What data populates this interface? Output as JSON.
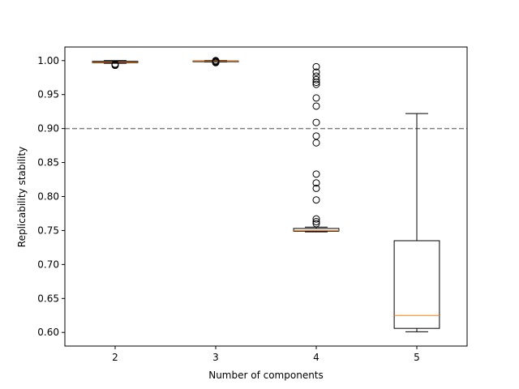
{
  "chart_data": {
    "type": "box",
    "title": "",
    "xlabel": "Number of components",
    "ylabel": "Replicability stability",
    "categories": [
      "2",
      "3",
      "4",
      "5"
    ],
    "ylim": [
      0.58,
      1.02
    ],
    "yticks": [
      0.6,
      0.65,
      0.7,
      0.75,
      0.8,
      0.85,
      0.9,
      0.95,
      1.0
    ],
    "ytick_labels": [
      "0.60",
      "0.65",
      "0.70",
      "0.75",
      "0.80",
      "0.85",
      "0.90",
      "0.95",
      "1.00"
    ],
    "reference_line": {
      "y": 0.9,
      "style": "dashed",
      "color": "#808080"
    },
    "grid": false,
    "box_color": "#000000",
    "median_color": "#ff7f0e",
    "boxes": [
      {
        "category": "2",
        "whisker_low": 0.996,
        "q1": 0.997,
        "median": 0.998,
        "q3": 0.999,
        "whisker_high": 1.0,
        "fliers": [
          0.993,
          0.994,
          0.995
        ]
      },
      {
        "category": "3",
        "whisker_low": 0.998,
        "q1": 0.9985,
        "median": 0.999,
        "q3": 0.9995,
        "whisker_high": 1.0,
        "fliers": [
          0.997,
          0.998,
          0.999,
          1.0
        ]
      },
      {
        "category": "4",
        "whisker_low": 0.748,
        "q1": 0.749,
        "median": 0.75,
        "q3": 0.753,
        "whisker_high": 0.755,
        "fliers": [
          0.76,
          0.763,
          0.767,
          0.795,
          0.812,
          0.82,
          0.833,
          0.879,
          0.889,
          0.909,
          0.933,
          0.945,
          0.965,
          0.968,
          0.972,
          0.977,
          0.983,
          0.991
        ]
      },
      {
        "category": "5",
        "whisker_low": 0.601,
        "q1": 0.606,
        "median": 0.625,
        "q3": 0.735,
        "whisker_high": 0.922,
        "fliers": []
      }
    ]
  }
}
